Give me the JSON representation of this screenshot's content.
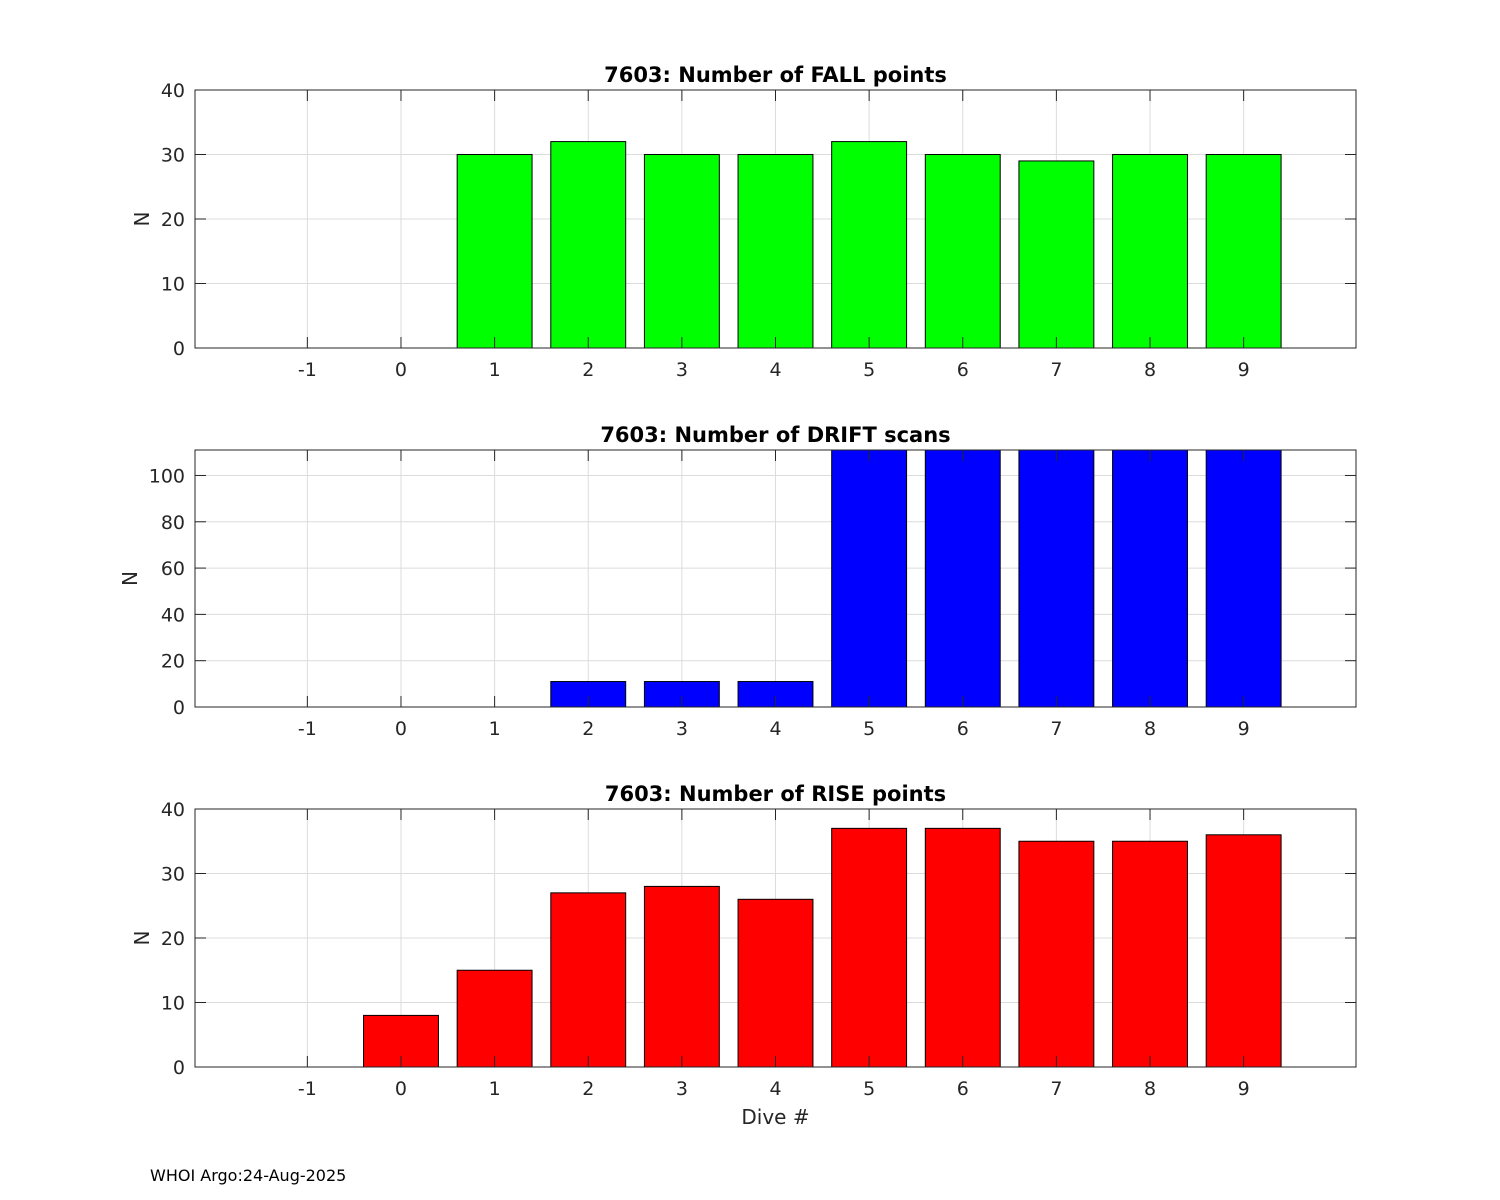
{
  "footer": "WHOI Argo:24-Aug-2025",
  "chart_data": [
    {
      "type": "bar",
      "title": "7603: Number of FALL points",
      "xlabel": "",
      "ylabel": "N",
      "x": [
        -1,
        0,
        1,
        2,
        3,
        4,
        5,
        6,
        7,
        8,
        9
      ],
      "values": [
        0,
        0,
        30,
        32,
        30,
        30,
        32,
        30,
        29,
        30,
        30
      ],
      "xlim": [
        -2.2,
        10.2
      ],
      "ylim": [
        0,
        40
      ],
      "yticks": [
        0,
        10,
        20,
        30,
        40
      ],
      "xtick_labels": [
        "-1",
        "0",
        "1",
        "2",
        "3",
        "4",
        "5",
        "6",
        "7",
        "8",
        "9"
      ],
      "ytick_labels": [
        "0",
        "10",
        "20",
        "30",
        "40"
      ],
      "color": "#00ff00",
      "grid": true
    },
    {
      "type": "bar",
      "title": "7603: Number of DRIFT scans",
      "xlabel": "",
      "ylabel": "N",
      "x": [
        -1,
        0,
        1,
        2,
        3,
        4,
        5,
        6,
        7,
        8,
        9
      ],
      "values": [
        0,
        0,
        0,
        11,
        11,
        11,
        111,
        111,
        111,
        111,
        111
      ],
      "xlim": [
        -2.2,
        10.2
      ],
      "ylim": [
        0,
        111
      ],
      "yticks": [
        0,
        20,
        40,
        60,
        80,
        100
      ],
      "xtick_labels": [
        "-1",
        "0",
        "1",
        "2",
        "3",
        "4",
        "5",
        "6",
        "7",
        "8",
        "9"
      ],
      "ytick_labels": [
        "0",
        "20",
        "40",
        "60",
        "80",
        "100"
      ],
      "color": "#0000ff",
      "grid": true
    },
    {
      "type": "bar",
      "title": "7603: Number of RISE points",
      "xlabel": "Dive #",
      "ylabel": "N",
      "x": [
        -1,
        0,
        1,
        2,
        3,
        4,
        5,
        6,
        7,
        8,
        9
      ],
      "values": [
        0,
        8,
        15,
        27,
        28,
        26,
        37,
        37,
        35,
        35,
        36
      ],
      "xlim": [
        -2.2,
        10.2
      ],
      "ylim": [
        0,
        40
      ],
      "yticks": [
        0,
        10,
        20,
        30,
        40
      ],
      "xtick_labels": [
        "-1",
        "0",
        "1",
        "2",
        "3",
        "4",
        "5",
        "6",
        "7",
        "8",
        "9"
      ],
      "ytick_labels": [
        "0",
        "10",
        "20",
        "30",
        "40"
      ],
      "color": "#ff0000",
      "grid": true
    }
  ]
}
